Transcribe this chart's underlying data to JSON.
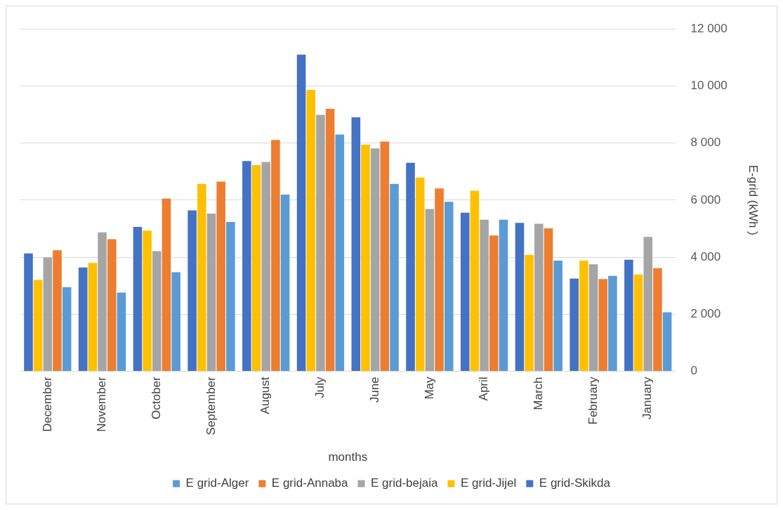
{
  "chart_data": {
    "type": "bar",
    "xlabel": "months",
    "ylabel": "E-grid (kWh )",
    "categories": [
      "December",
      "November",
      "October",
      "September",
      "August",
      "July",
      "June",
      "May",
      "April",
      "March",
      "February",
      "January"
    ],
    "series": [
      {
        "name": "E grid-Skikda",
        "color": "#4472c4",
        "values": [
          4130,
          3640,
          5060,
          5640,
          7370,
          11100,
          8900,
          7310,
          5560,
          5200,
          3250,
          3910
        ]
      },
      {
        "name": "E grid-Jijel",
        "color": "#ffc000",
        "values": [
          3200,
          3800,
          4930,
          6570,
          7230,
          9860,
          7940,
          6790,
          6330,
          4080,
          3880,
          3390
        ]
      },
      {
        "name": "E grid-bejaia",
        "color": "#a5a5a5",
        "values": [
          3990,
          4870,
          4210,
          5530,
          7340,
          8990,
          7810,
          5690,
          5310,
          5170,
          3750,
          4710
        ]
      },
      {
        "name": "E grid-Annaba",
        "color": "#ed7d31",
        "values": [
          4240,
          4630,
          6050,
          6650,
          8110,
          9200,
          8050,
          6410,
          4760,
          5010,
          3230,
          3610
        ]
      },
      {
        "name": "E grid-Alger",
        "color": "#5b9bd5",
        "values": [
          2950,
          2760,
          3470,
          5230,
          6190,
          8300,
          6570,
          5940,
          5310,
          3880,
          3340,
          2070
        ]
      }
    ],
    "ylim": [
      0,
      12000
    ],
    "yticks": [
      0,
      {
        "value": 2000,
        "label": "2 000"
      },
      {
        "value": 4000,
        "label": "4 000"
      },
      {
        "value": 6000,
        "label": "6 000"
      },
      {
        "value": 8000,
        "label": "8 000"
      },
      {
        "value": 10000,
        "label": "10 000"
      },
      {
        "value": 12000,
        "label": "12 000"
      }
    ],
    "grid": "y",
    "legend": "bottom"
  }
}
